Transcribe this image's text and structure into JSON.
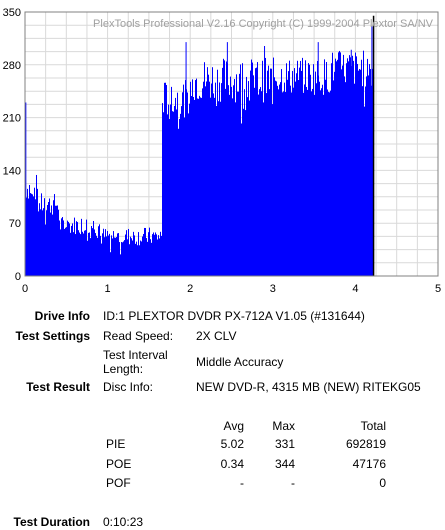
{
  "chart_data": {
    "type": "bar",
    "watermark": "PlexTools Professional V2.16 Copyright (C) 1999-2004 Plextor SA/NV",
    "xlim": [
      0,
      5
    ],
    "ylim": [
      0,
      350
    ],
    "xticks": [
      "0",
      "1",
      "2",
      "3",
      "4",
      "5"
    ],
    "yticks": [
      "0",
      "70",
      "140",
      "210",
      "280",
      "350"
    ],
    "grid": true,
    "series": [
      {
        "color": "#0000ff",
        "segments": [
          {
            "x": [
              0.0,
              0.15
            ],
            "y": [
              100,
              135
            ]
          },
          {
            "x": [
              0.15,
              0.4
            ],
            "y": [
              80,
              110
            ]
          },
          {
            "x": [
              0.4,
              0.9
            ],
            "y": [
              55,
              80
            ]
          },
          {
            "x": [
              0.9,
              1.65
            ],
            "y": [
              40,
              65
            ]
          },
          {
            "x": [
              1.65,
              2.0
            ],
            "y": [
              210,
              260
            ]
          },
          {
            "x": [
              2.0,
              3.0
            ],
            "y": [
              230,
              290
            ]
          },
          {
            "x": [
              3.0,
              3.7
            ],
            "y": [
              240,
              290
            ]
          },
          {
            "x": [
              3.7,
              4.2
            ],
            "y": [
              250,
              300
            ]
          }
        ],
        "spikes": [
          {
            "x": 0.01,
            "y": 230
          },
          {
            "x": 1.95,
            "y": 310
          },
          {
            "x": 2.45,
            "y": 310
          },
          {
            "x": 2.9,
            "y": 305
          },
          {
            "x": 3.55,
            "y": 310
          },
          {
            "x": 3.95,
            "y": 300
          },
          {
            "x": 4.2,
            "y": 331
          }
        ],
        "end_x": 4.22
      },
      {
        "color": "#000000",
        "line_at_x": 4.22,
        "y_top": 345
      }
    ]
  },
  "info": {
    "drive_label": "Drive Info",
    "drive_value": "ID:1 PLEXTOR DVDR PX-712A V1.05 (#131644)",
    "settings_label": "Test Settings",
    "read_speed_label": "Read Speed:",
    "read_speed_value": "2X CLV",
    "interval_label_1": "Test Interval",
    "interval_label_2": "Length:",
    "interval_value": "Middle Accuracy",
    "result_label": "Test Result",
    "disc_info_label": "Disc Info:",
    "disc_info_value": "NEW DVD-R, 4315 MB (NEW) RITEKG05",
    "table": {
      "headers": [
        "Avg",
        "Max",
        "Total"
      ],
      "rows": [
        {
          "name": "PIE",
          "avg": "5.02",
          "max": "331",
          "total": "692819"
        },
        {
          "name": "POE",
          "avg": "0.34",
          "max": "344",
          "total": "47176"
        },
        {
          "name": "POF",
          "avg": "-",
          "max": "-",
          "total": "0"
        }
      ]
    },
    "duration_label": "Test Duration",
    "duration_value": "0:10:23"
  }
}
